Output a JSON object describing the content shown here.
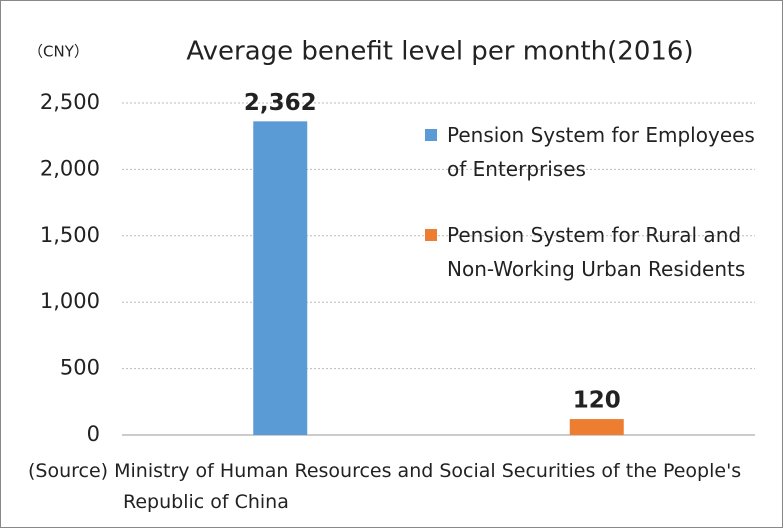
{
  "chart_data": {
    "type": "bar",
    "unit_label": "（CNY）",
    "title": "Average benefit level per month(2016)",
    "categories": [
      null,
      null
    ],
    "series": [
      {
        "name": "Pension System for Employees of Enterprises",
        "color": "#5b9bd5",
        "values": [
          2362,
          null
        ],
        "value_labels": [
          "2,362",
          null
        ]
      },
      {
        "name": "Pension System for Rural and Non-Working Urban Residents",
        "color": "#ed7d31",
        "values": [
          null,
          120
        ],
        "value_labels": [
          null,
          "120"
        ]
      }
    ],
    "ylim": [
      0,
      2500
    ],
    "yticks": [
      0,
      500,
      {
        "value": 1000,
        "label": "1,000"
      },
      {
        "value": 1500,
        "label": "1,500"
      },
      {
        "value": 2000,
        "label": "2,000"
      },
      {
        "value": 2500,
        "label": "2,500"
      }
    ],
    "grid": true,
    "legend": "right",
    "source": "(Source) Ministry of Human Resources and Social Securities of the People's Republic of China"
  }
}
